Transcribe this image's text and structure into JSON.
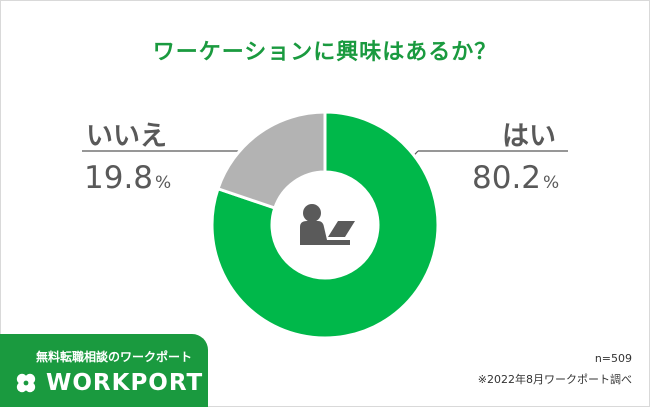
{
  "chart_data": {
    "type": "pie",
    "style": "donut",
    "title": "ワーケーションに興味はあるか？",
    "slices": [
      {
        "label": "はい",
        "value": 80.2,
        "color": "#00b84a"
      },
      {
        "label": "いいえ",
        "value": 19.8,
        "color": "#b3b3b3"
      }
    ],
    "unit": "%",
    "center_icon": "person-at-laptop-icon"
  },
  "labels": {
    "yes_label": "はい",
    "yes_value": "80.2",
    "no_label": "いいえ",
    "no_value": "19.8",
    "percent": "%"
  },
  "brand": {
    "tagline": "無料転職相談のワークポート",
    "name": "WORKPORT",
    "logo_icon": "clover-icon",
    "color": "#1a9a3f"
  },
  "footnotes": {
    "sample_size": "n=509",
    "source": "※2022年8月ワークポート調べ"
  }
}
